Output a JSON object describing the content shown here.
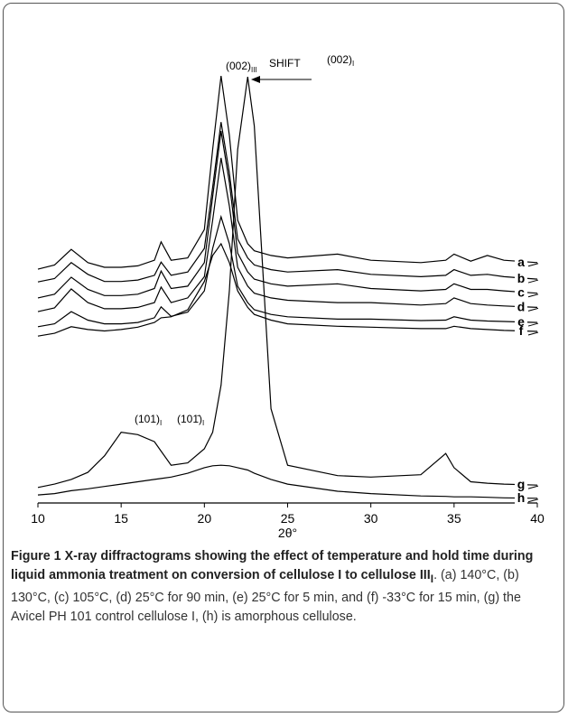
{
  "chart_data": {
    "type": "line",
    "color": "#000000",
    "x": [
      10,
      11,
      12,
      13,
      14,
      15,
      16,
      17,
      17.4,
      18,
      19,
      20,
      20.5,
      21,
      21.5,
      22,
      22.6,
      23,
      24,
      25,
      28,
      30,
      33,
      34.5,
      35,
      36,
      37,
      38,
      40
    ],
    "series": [
      {
        "name": "a",
        "values": [
          49.6,
          50.5,
          53.8,
          51,
          50,
          50,
          50.3,
          51.5,
          55.4,
          51.5,
          52,
          58,
          75,
          90.6,
          78,
          60,
          55,
          53.5,
          52.5,
          52,
          52.8,
          51.5,
          51,
          51.5,
          52.8,
          51.3,
          52.5,
          51.5,
          51
        ]
      },
      {
        "name": "b",
        "values": [
          46.9,
          47.6,
          51,
          48.5,
          47,
          47,
          47.3,
          48.3,
          51.1,
          48.3,
          49,
          54,
          67,
          80.8,
          70,
          56,
          52,
          50.5,
          49.5,
          49,
          49.5,
          48.5,
          48,
          48.3,
          49.5,
          48.3,
          48.5,
          48,
          47.5
        ]
      },
      {
        "name": "c",
        "values": [
          43.5,
          44.3,
          47.9,
          45.3,
          44,
          44,
          44.3,
          45.5,
          49.2,
          45.5,
          46,
          51,
          65,
          78.9,
          68,
          53,
          49,
          47.5,
          46.5,
          46,
          46.5,
          45.5,
          45,
          45.3,
          46.5,
          45.3,
          45.3,
          45,
          44.5
        ]
      },
      {
        "name": "d",
        "values": [
          40.6,
          41.4,
          45.4,
          42.5,
          41.2,
          41.2,
          41.5,
          42.5,
          45.8,
          42.5,
          43.5,
          48,
          60,
          73.2,
          63,
          50,
          46,
          44.5,
          43.5,
          43,
          42.5,
          42.5,
          42,
          42.3,
          43.5,
          42.3,
          42,
          41.8,
          41.5
        ]
      },
      {
        "name": "e",
        "values": [
          37.4,
          38,
          40.6,
          38.8,
          38,
          38,
          38.3,
          39.3,
          41.6,
          39.6,
          40.5,
          45,
          54,
          60.7,
          55,
          46,
          42.5,
          41,
          40,
          39.5,
          39,
          39,
          38.7,
          38.8,
          39.5,
          38.8,
          38.6,
          38.5,
          38.3
        ]
      },
      {
        "name": "f",
        "values": [
          35.4,
          36,
          37.4,
          36.8,
          36.5,
          36.8,
          37.3,
          38.3,
          39.3,
          39.5,
          41,
          47,
          52.5,
          55,
          51,
          45,
          41.5,
          40,
          38.8,
          38,
          37.5,
          37.3,
          37,
          37,
          37.5,
          37,
          36.8,
          36.6,
          36.4
        ]
      },
      {
        "name": "g",
        "values": [
          3.3,
          4,
          5,
          6.5,
          10,
          15,
          14.5,
          13,
          11,
          8,
          8.5,
          11.5,
          15,
          25,
          45,
          75,
          90.4,
          80,
          20,
          8,
          5.8,
          5.5,
          6,
          10.5,
          7.5,
          4.5,
          4.2,
          4,
          3.8
        ]
      },
      {
        "name": "h",
        "values": [
          1.7,
          2,
          2.6,
          3,
          3.5,
          4,
          4.5,
          5,
          5.2,
          5.5,
          6.3,
          7.5,
          7.9,
          8,
          7.9,
          7.5,
          7,
          6.3,
          5,
          4,
          2.5,
          2,
          1.5,
          1.4,
          1.3,
          1.3,
          1.2,
          1.1,
          1
        ]
      }
    ],
    "xlim": [
      10,
      40
    ],
    "xticks": [
      10,
      15,
      20,
      25,
      30,
      35,
      40
    ],
    "ylim": [
      0,
      100
    ],
    "xlabel": "2θ°",
    "annotations": [
      {
        "text": "(002)",
        "sub": "III"
      },
      {
        "text": "SHIFT"
      },
      {
        "text": "(002)",
        "sub": "I"
      },
      {
        "text": "(101)",
        "sub": "I"
      },
      {
        "text": "(101̄)",
        "sub": "I"
      }
    ]
  },
  "caption": {
    "label": "Figure 1",
    "title": "X-ray diffractograms showing the effect of temperature and hold time during liquid ammonia treatment on conversion of cellulose I to cellulose III",
    "title_sub": "I",
    "text": ". (a) 140°C, (b) 130°C, (c) 105°C, (d) 25°C for 90 min, (e) 25°C for 5 min, and (f) -33°C for 15 min, (g) the Avicel PH 101 control cellulose I, (h) is amorphous cellulose."
  }
}
